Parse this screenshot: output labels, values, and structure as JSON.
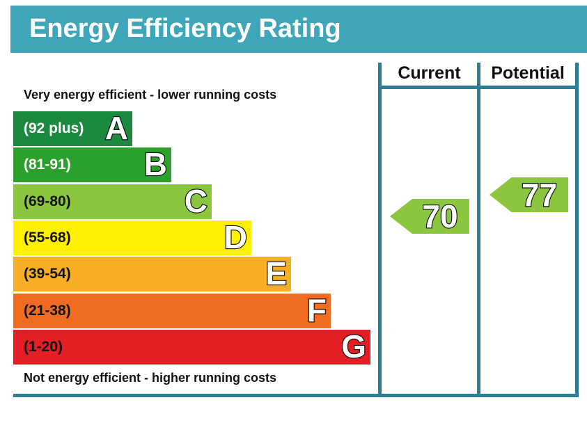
{
  "title": "Energy Efficiency Rating",
  "colors": {
    "header": "#3ea6b8",
    "frame": "#2b7d95",
    "arrow": "#8cc63f"
  },
  "chart_data": {
    "type": "bar",
    "columns": [
      "Current",
      "Potential"
    ],
    "top_caption": "Very energy efficient - lower running costs",
    "bottom_caption": "Not energy efficient - higher running costs",
    "bands": [
      {
        "letter": "A",
        "range": "(92 plus)",
        "color": "#1b8a3e",
        "text_color": "#ffffff"
      },
      {
        "letter": "B",
        "range": "(81-91)",
        "color": "#2ca02c",
        "text_color": "#ffffff"
      },
      {
        "letter": "C",
        "range": "(69-80)",
        "color": "#8cc63f",
        "text_color": "#111111"
      },
      {
        "letter": "D",
        "range": "(55-68)",
        "color": "#ffef00",
        "text_color": "#111111"
      },
      {
        "letter": "E",
        "range": "(39-54)",
        "color": "#f7ae27",
        "text_color": "#111111"
      },
      {
        "letter": "F",
        "range": "(21-38)",
        "color": "#ef6c22",
        "text_color": "#111111"
      },
      {
        "letter": "G",
        "range": "(1-20)",
        "color": "#e31e25",
        "text_color": "#111111"
      }
    ],
    "current": {
      "value": 70,
      "band": "C"
    },
    "potential": {
      "value": 77,
      "band": "C"
    }
  }
}
